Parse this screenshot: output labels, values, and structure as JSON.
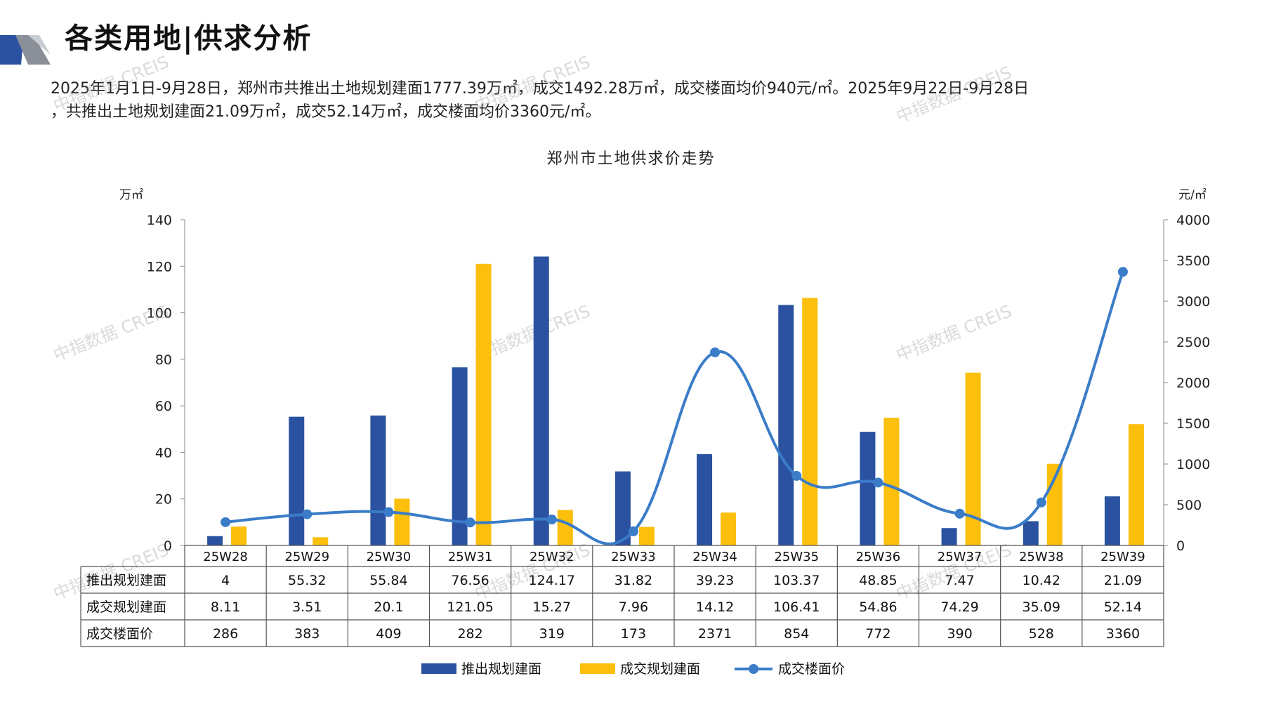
{
  "header": {
    "title": "各类用地|供求分析"
  },
  "summary": {
    "line1": "2025年1月1日-9月28日，郑州市共推出土地规划建面1777.39万㎡，成交1492.28万㎡，成交楼面均价940元/㎡。2025年9月22日-9月28日",
    "line2": "，共推出土地规划建面21.09万㎡，成交52.14万㎡，成交楼面均价3360元/㎡。"
  },
  "watermark_text": "中指数据 CREIS",
  "colors": {
    "supply": "#2a52a0",
    "deal": "#fbbf0c",
    "price": "#3a7cc8"
  },
  "chart_data": {
    "type": "bar",
    "title": "郑州市土地供求价走势",
    "y_left_label": "万㎡",
    "y_right_label": "元/㎡",
    "y_left_ticks": [
      0,
      20,
      40,
      60,
      80,
      100,
      120,
      140
    ],
    "y_right_ticks": [
      0,
      500,
      1000,
      1500,
      2000,
      2500,
      3000,
      3500,
      4000
    ],
    "ylim_left": [
      0,
      140
    ],
    "ylim_right": [
      0,
      4000
    ],
    "categories": [
      "25W28",
      "25W29",
      "25W30",
      "25W31",
      "25W32",
      "25W33",
      "25W34",
      "25W35",
      "25W36",
      "25W37",
      "25W38",
      "25W39"
    ],
    "series": [
      {
        "name": "推出规划建面",
        "type": "bar",
        "axis": "left",
        "values": [
          4,
          55.32,
          55.84,
          76.56,
          124.17,
          31.82,
          39.23,
          103.37,
          48.85,
          7.47,
          10.42,
          21.09
        ],
        "labels": [
          "4",
          "55.32",
          "55.84",
          "76.56",
          "124.17",
          "31.82",
          "39.23",
          "103.37",
          "48.85",
          "7.47",
          "10.42",
          "21.09"
        ]
      },
      {
        "name": "成交规划建面",
        "type": "bar",
        "axis": "left",
        "values": [
          8.11,
          3.51,
          20.1,
          121.05,
          15.27,
          7.96,
          14.12,
          106.41,
          54.86,
          74.29,
          35.09,
          52.14
        ],
        "labels": [
          "8.11",
          "3.51",
          "20.1",
          "121.05",
          "15.27",
          "7.96",
          "14.12",
          "106.41",
          "54.86",
          "74.29",
          "35.09",
          "52.14"
        ]
      },
      {
        "name": "成交楼面价",
        "type": "line",
        "axis": "right",
        "values": [
          286,
          383,
          409,
          282,
          319,
          173,
          2371,
          854,
          772,
          390,
          528,
          3360
        ],
        "labels": [
          "286",
          "383",
          "409",
          "282",
          "319",
          "173",
          "2371",
          "854",
          "772",
          "390",
          "528",
          "3360"
        ]
      }
    ],
    "legend_position": "bottom"
  }
}
